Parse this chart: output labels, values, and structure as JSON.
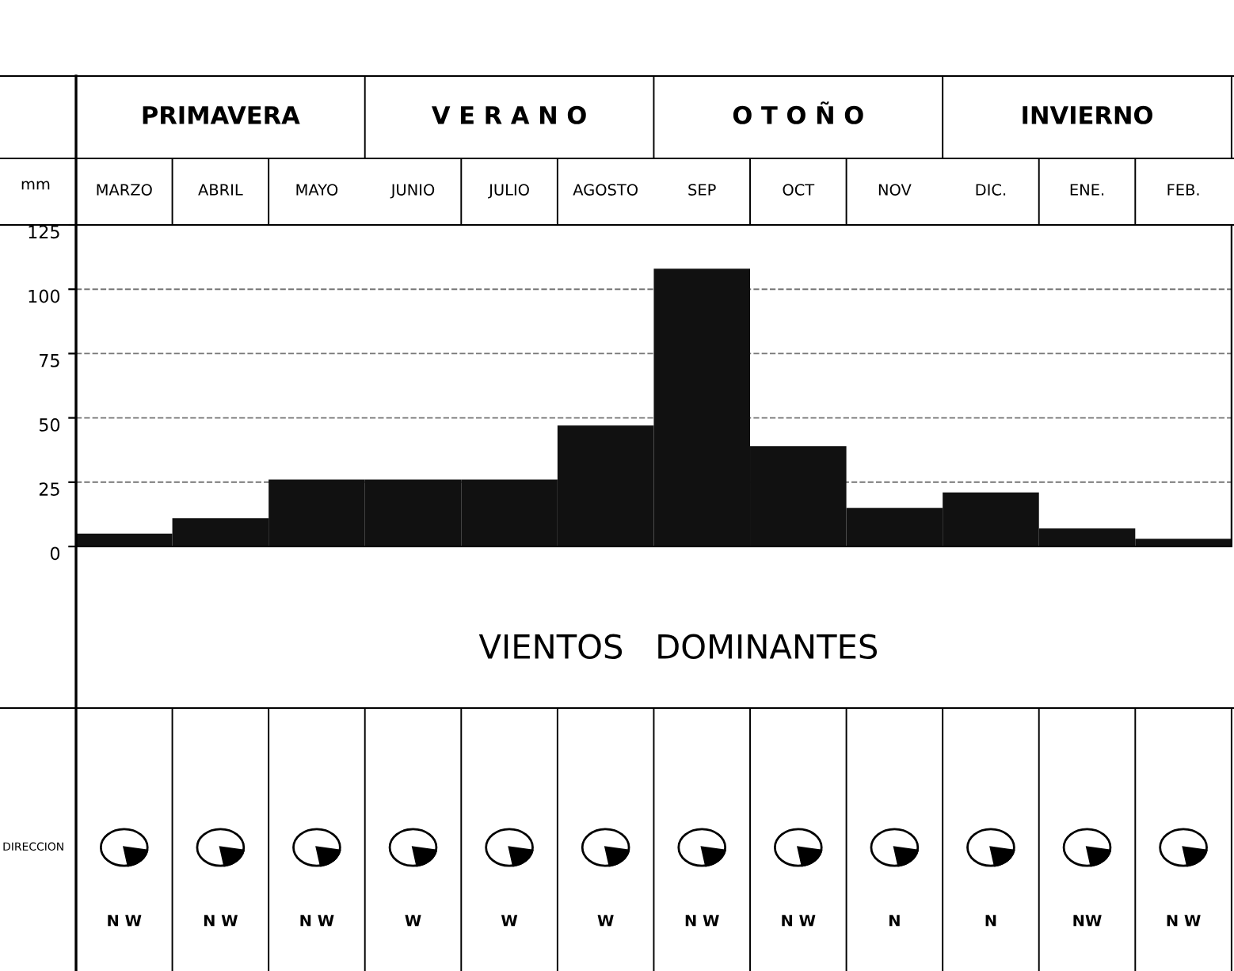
{
  "chart_data": {
    "type": "bar",
    "ylabel": "mm",
    "categories": [
      "MARZO",
      "ABRIL",
      "MAYO",
      "JUNIO",
      "JULIO",
      "AGOSTO",
      "SEP",
      "OCT",
      "NOV",
      "DIC.",
      "ENE.",
      "FEB."
    ],
    "values": [
      5,
      11,
      26,
      26,
      26,
      47,
      108,
      39,
      15,
      21,
      7,
      3
    ],
    "color": "#111111",
    "ylim": [
      0,
      125
    ],
    "yticks": [
      0,
      25,
      50,
      75,
      100,
      125
    ],
    "grid": "y",
    "annotations": [
      "PRIMAVERA",
      "V E R A N O",
      "O T O Ñ O",
      "INVIERNO",
      "VIENTOS   DOMINANTES",
      "DIRECCION",
      "N W",
      "N W",
      "N W",
      "W",
      "W",
      "W",
      "N W",
      "N W",
      "N",
      "N",
      "NW",
      "N W"
    ]
  }
}
